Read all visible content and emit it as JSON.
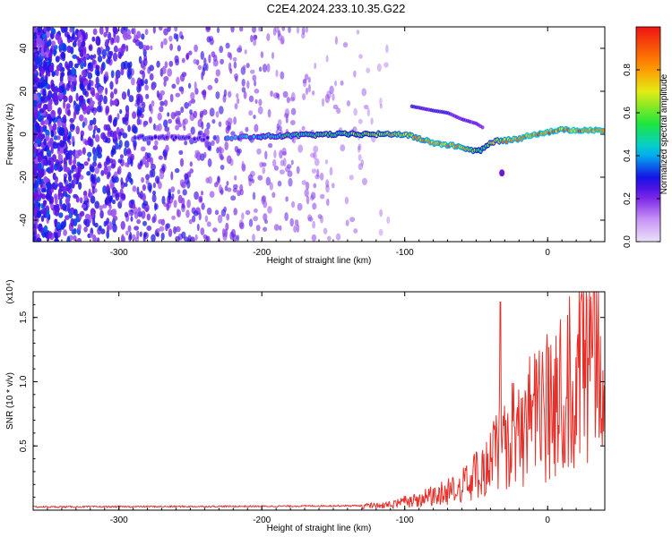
{
  "page_title": "C2E4.2024.233.10.35.G22",
  "colors": {
    "snr_line": "#e8302a",
    "dots": "#7a22e6",
    "axis": "#000000"
  },
  "chart_data": [
    {
      "type": "heatmap",
      "title": "",
      "xlabel": "Height of straight line (km)",
      "ylabel": "Frequency (Hz)",
      "xlim": [
        -360,
        40
      ],
      "ylim": [
        -50,
        50
      ],
      "xticks": [
        -300,
        -200,
        -100,
        0
      ],
      "xtick_labels": [
        "-300",
        "-200",
        "-100",
        "0"
      ],
      "yticks": [
        -40,
        -20,
        0,
        20,
        40
      ],
      "ytick_labels": [
        "-40",
        "-20",
        "0",
        "20",
        "40"
      ],
      "colorbar": {
        "label": "Normalized spectral amplitude",
        "range": [
          0.0,
          1.0
        ],
        "ticks": [
          0.0,
          0.2,
          0.4,
          0.6,
          0.8
        ],
        "tick_labels": [
          "0.0",
          "0.2",
          "0.4",
          "0.6",
          "0.8"
        ]
      },
      "ridge": {
        "x": [
          -290,
          -240,
          -200,
          -150,
          -120,
          -100,
          -90,
          -80,
          -70,
          -60,
          -50,
          -45,
          -40,
          -35,
          -30,
          -20,
          -10,
          0,
          10,
          20,
          40
        ],
        "y": [
          -1.5,
          -2,
          -1,
          0,
          0,
          0,
          -2,
          -4,
          -5,
          -6,
          -8,
          -7,
          -4,
          -3,
          -3,
          -2,
          0,
          1,
          2,
          2,
          2
        ],
        "amplitude": [
          0.35,
          0.3,
          0.5,
          0.6,
          0.7,
          0.8,
          0.85,
          0.9,
          0.9,
          0.88,
          0.7,
          0.6,
          0.7,
          0.75,
          0.85,
          0.9,
          0.95,
          0.95,
          0.9,
          0.95,
          0.95
        ]
      },
      "secondary_branch": {
        "x": [
          -95,
          -80,
          -70,
          -60,
          -50,
          -45
        ],
        "y": [
          13,
          11,
          10,
          7,
          5,
          3
        ]
      },
      "noise_amplitude_range": [
        0.15,
        0.3
      ]
    },
    {
      "type": "line",
      "title": "",
      "xlabel": "Height of straight line (km)",
      "ylabel": "SNR (10 * v/v)",
      "y_multiplier_label": "(x10⁴)",
      "xlim": [
        -360,
        40
      ],
      "ylim": [
        0,
        1.7
      ],
      "xticks": [
        -300,
        -200,
        -100,
        0
      ],
      "xtick_labels": [
        "-300",
        "-200",
        "-100",
        "0"
      ],
      "yticks": [
        0.5,
        1.0,
        1.5
      ],
      "ytick_labels": [
        "0.5",
        "1.0",
        "1.5"
      ],
      "envelope": {
        "x": [
          -360,
          -200,
          -130,
          -110,
          -90,
          -70,
          -50,
          -40,
          -35,
          -30,
          -20,
          -10,
          0,
          10,
          20,
          30,
          40
        ],
        "y": [
          0.025,
          0.03,
          0.035,
          0.06,
          0.12,
          0.2,
          0.35,
          0.5,
          0.65,
          0.72,
          0.85,
          0.95,
          1.1,
          1.28,
          1.45,
          1.58,
          1.65
        ]
      },
      "spikes": [
        {
          "x": -33,
          "y": 1.62
        },
        {
          "x": 12,
          "y": 0.37
        }
      ]
    }
  ]
}
